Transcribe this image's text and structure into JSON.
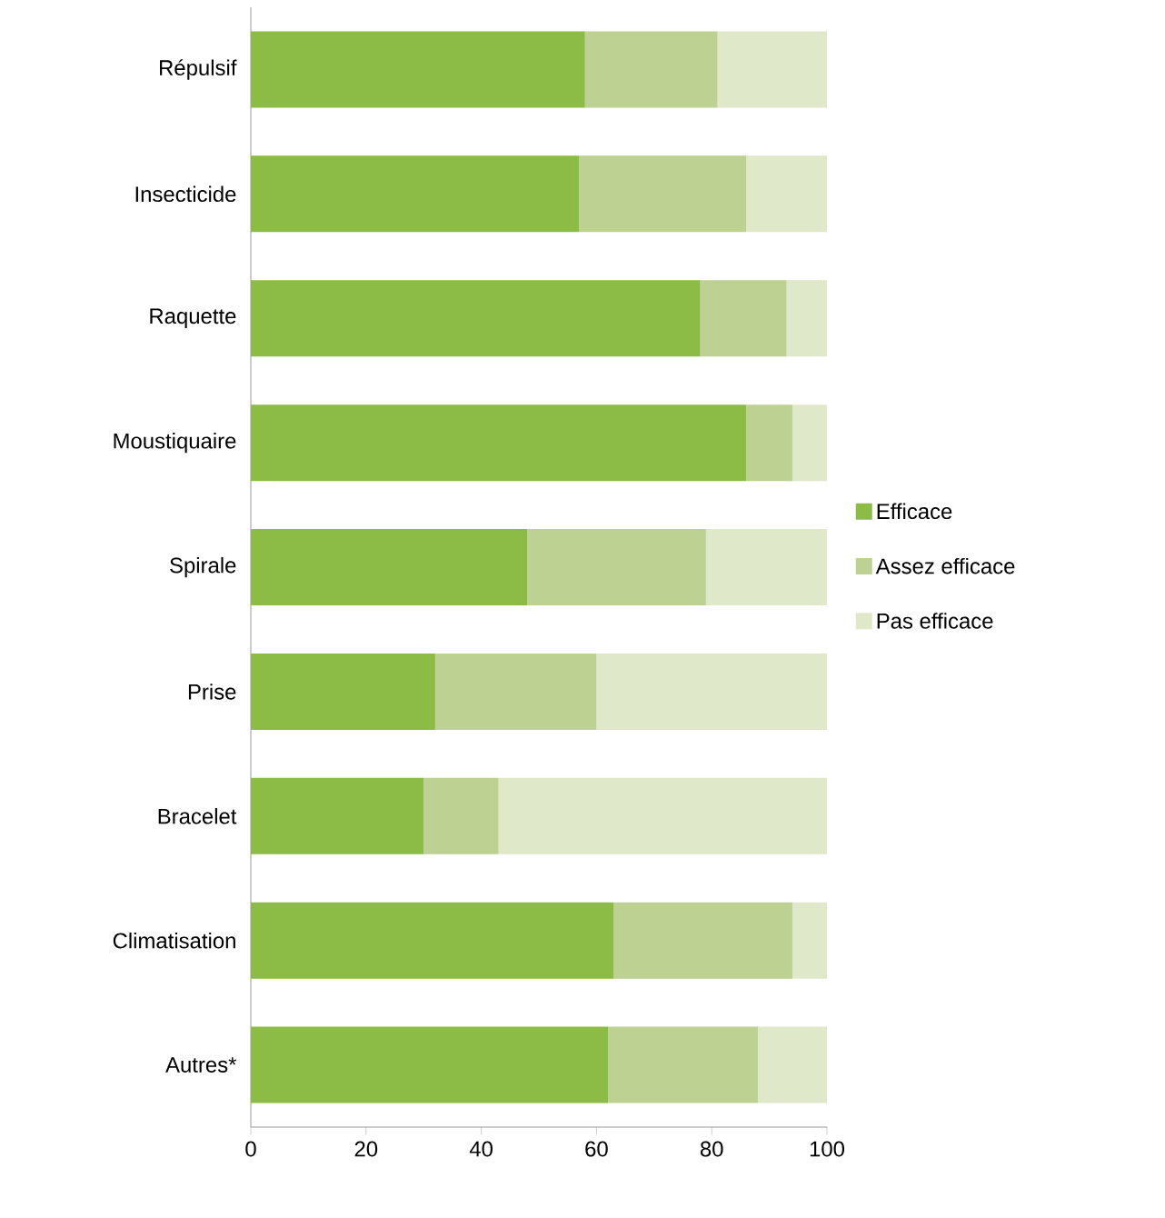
{
  "chart_data": {
    "type": "bar",
    "orientation": "horizontal",
    "stacked": true,
    "categories": [
      "Répulsif",
      "Insecticide",
      "Raquette",
      "Moustiquaire",
      "Spirale",
      "Prise",
      "Bracelet",
      "Climatisation",
      "Autres*"
    ],
    "series": [
      {
        "name": "Efficace",
        "color": "#8cbb46",
        "values": [
          58,
          57,
          78,
          86,
          48,
          32,
          30,
          63,
          62
        ]
      },
      {
        "name": "Assez efficace",
        "color": "#bdd193",
        "values": [
          23,
          29,
          15,
          8,
          31,
          28,
          13,
          31,
          26
        ]
      },
      {
        "name": "Pas efficace",
        "color": "#dfe8c9",
        "values": [
          19,
          14,
          7,
          6,
          21,
          40,
          57,
          6,
          12
        ]
      }
    ],
    "xlim": [
      0,
      100
    ],
    "xticks": [
      0,
      20,
      40,
      60,
      80,
      100
    ],
    "grid": false,
    "legend": "right"
  }
}
